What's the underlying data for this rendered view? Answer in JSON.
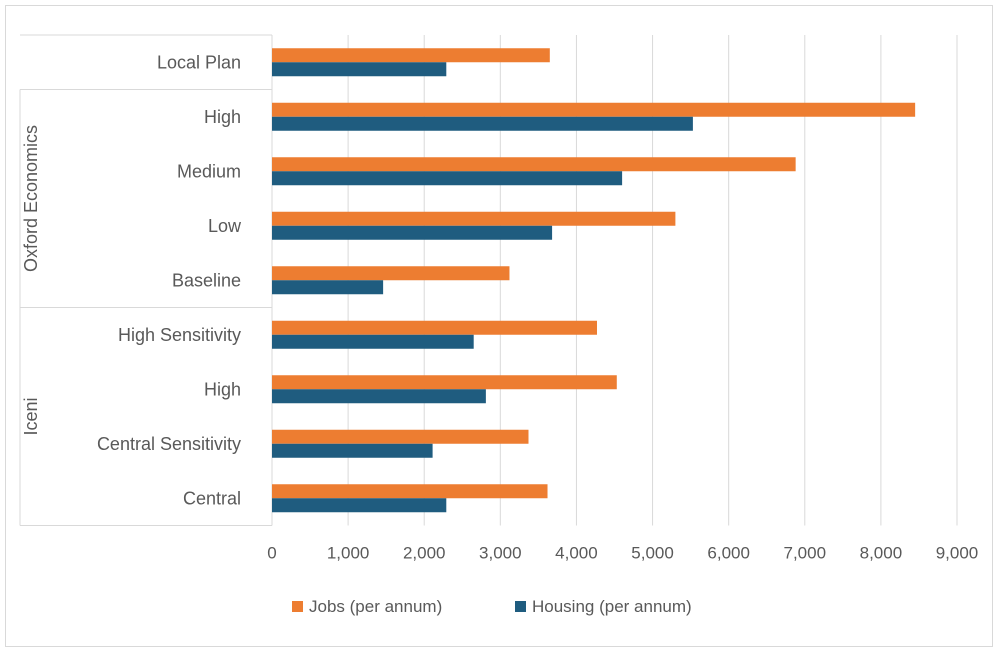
{
  "chart_data": {
    "type": "bar",
    "orientation": "horizontal",
    "groups": [
      {
        "name": "",
        "categories": [
          "Local Plan"
        ]
      },
      {
        "name": "Oxford Economics",
        "categories": [
          "High",
          "Medium",
          "Low",
          "Baseline"
        ]
      },
      {
        "name": "Iceni",
        "categories": [
          "High Sensitivity",
          "High",
          "Central Sensitivity",
          "Central"
        ]
      }
    ],
    "categories": [
      "Local Plan",
      "High",
      "Medium",
      "Low",
      "Baseline",
      "High Sensitivity",
      "High",
      "Central Sensitivity",
      "Central"
    ],
    "series": [
      {
        "name": "Jobs (per annum)",
        "color": "#ED7D31",
        "values": [
          3650,
          8450,
          6880,
          5300,
          3120,
          4270,
          4530,
          3370,
          3620
        ]
      },
      {
        "name": "Housing (per annum)",
        "color": "#1F5C7F",
        "values": [
          2290,
          5530,
          4600,
          3680,
          1460,
          2650,
          2810,
          2110,
          2290
        ]
      }
    ],
    "xlim": [
      0,
      9000
    ],
    "xticks": [
      "0",
      "1,000",
      "2,000",
      "3,000",
      "4,000",
      "5,000",
      "6,000",
      "7,000",
      "8,000",
      "9,000"
    ],
    "grid": "vertical",
    "legend_position": "bottom",
    "title": "",
    "xlabel": "",
    "ylabel": ""
  }
}
